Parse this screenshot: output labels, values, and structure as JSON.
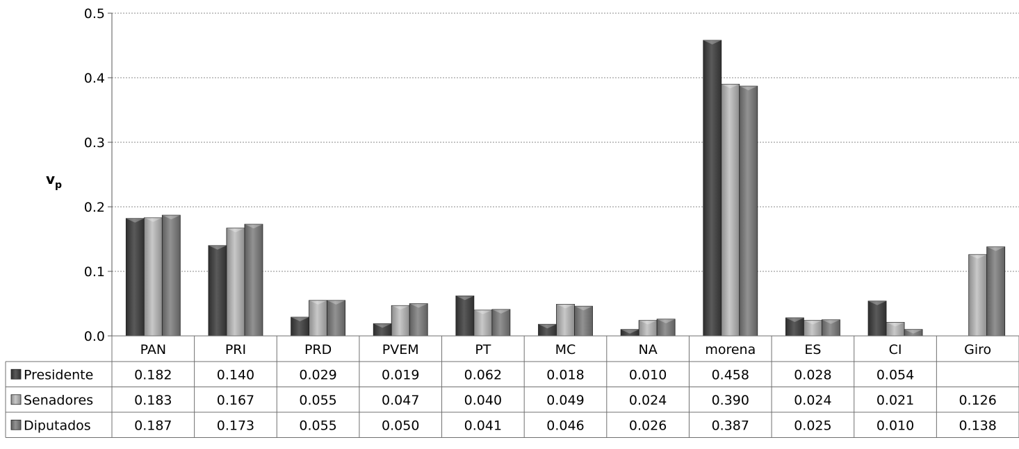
{
  "chart_data": {
    "type": "bar",
    "ylabel": "v",
    "ylabel_sub": "p",
    "ylim": [
      0,
      0.5
    ],
    "yticks": [
      "0.0",
      "0.1",
      "0.2",
      "0.3",
      "0.4",
      "0.5"
    ],
    "grid": "horizontal dotted",
    "legend": "data-table",
    "categories": [
      "PAN",
      "PRI",
      "PRD",
      "PVEM",
      "PT",
      "MC",
      "NA",
      "morena",
      "ES",
      "CI",
      "Giro"
    ],
    "series": [
      {
        "name": "Presidente",
        "color": "#4a4a4a",
        "values": [
          0.182,
          0.14,
          0.029,
          0.019,
          0.062,
          0.018,
          0.01,
          0.458,
          0.028,
          0.054,
          null
        ],
        "labels": [
          "0.182",
          "0.140",
          "0.029",
          "0.019",
          "0.062",
          "0.018",
          "0.010",
          "0.458",
          "0.028",
          "0.054",
          ""
        ]
      },
      {
        "name": "Senadores",
        "color": "#a9a9a9",
        "values": [
          0.183,
          0.167,
          0.055,
          0.047,
          0.04,
          0.049,
          0.024,
          0.39,
          0.024,
          0.021,
          0.126
        ],
        "labels": [
          "0.183",
          "0.167",
          "0.055",
          "0.047",
          "0.040",
          "0.049",
          "0.024",
          "0.390",
          "0.024",
          "0.021",
          "0.126"
        ]
      },
      {
        "name": "Diputados",
        "color": "#7a7a7a",
        "values": [
          0.187,
          0.173,
          0.055,
          0.05,
          0.041,
          0.046,
          0.026,
          0.387,
          0.025,
          0.01,
          0.138
        ],
        "labels": [
          "0.187",
          "0.173",
          "0.055",
          "0.050",
          "0.041",
          "0.046",
          "0.026",
          "0.387",
          "0.025",
          "0.010",
          "0.138"
        ]
      }
    ]
  }
}
